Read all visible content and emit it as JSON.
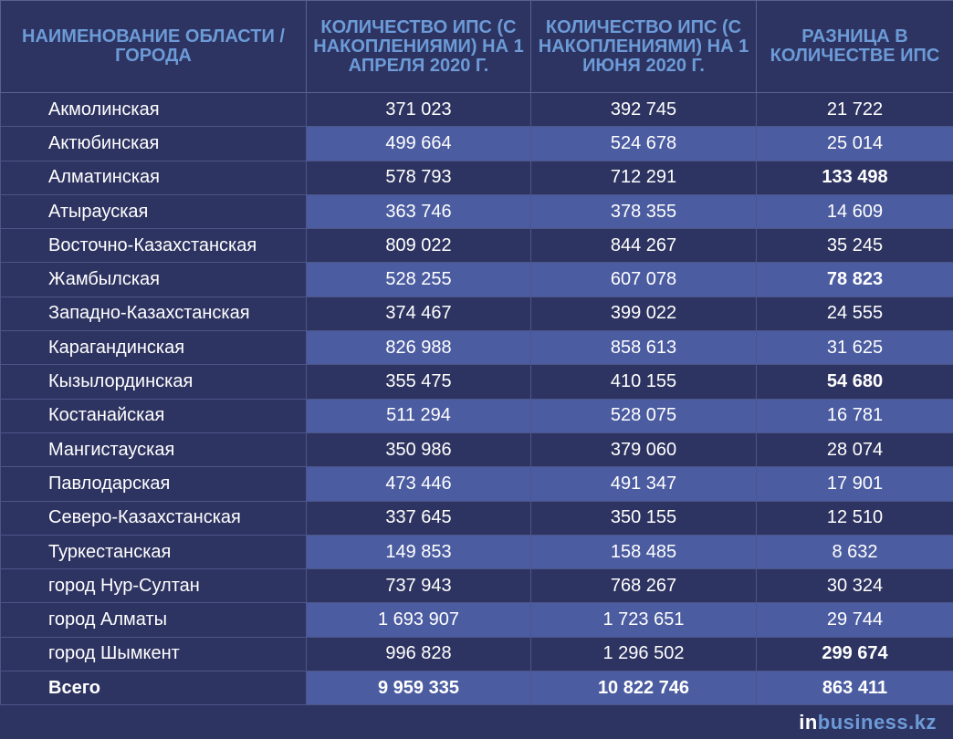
{
  "headers": [
    "НАИМЕНОВАНИЕ ОБЛАСТИ / ГОРОДА",
    "КОЛИЧЕСТВО ИПС (С НАКОПЛЕНИЯМИ) НА 1 АПРЕЛЯ 2020 Г.",
    "КОЛИЧЕСТВО ИПС (С НАКОПЛЕНИЯМИ) НА 1 ИЮНЯ 2020 Г.",
    "РАЗНИЦА В КОЛИЧЕСТВЕ ИПС"
  ],
  "rows": [
    {
      "name": "Акмолинская",
      "apr": "371 023",
      "jun": "392 745",
      "diff": "21 722",
      "bold": false
    },
    {
      "name": "Актюбинская",
      "apr": "499 664",
      "jun": "524 678",
      "diff": "25 014",
      "bold": false
    },
    {
      "name": "Алматинская",
      "apr": "578 793",
      "jun": "712 291",
      "diff": "133 498",
      "bold": true
    },
    {
      "name": "Атырауская",
      "apr": "363 746",
      "jun": "378 355",
      "diff": "14 609",
      "bold": false
    },
    {
      "name": "Восточно-Казахстанская",
      "apr": "809 022",
      "jun": "844 267",
      "diff": "35 245",
      "bold": false
    },
    {
      "name": "Жамбылская",
      "apr": "528 255",
      "jun": "607 078",
      "diff": "78 823",
      "bold": true
    },
    {
      "name": "Западно-Казахстанская",
      "apr": "374 467",
      "jun": "399 022",
      "diff": "24 555",
      "bold": false
    },
    {
      "name": "Карагандинская",
      "apr": "826 988",
      "jun": "858 613",
      "diff": "31 625",
      "bold": false
    },
    {
      "name": "Кызылординская",
      "apr": "355 475",
      "jun": "410 155",
      "diff": "54 680",
      "bold": true
    },
    {
      "name": "Костанайская",
      "apr": "511 294",
      "jun": "528 075",
      "diff": "16 781",
      "bold": false
    },
    {
      "name": "Мангистауская",
      "apr": "350 986",
      "jun": "379 060",
      "diff": "28 074",
      "bold": false
    },
    {
      "name": "Павлодарская",
      "apr": "473 446",
      "jun": "491 347",
      "diff": "17 901",
      "bold": false
    },
    {
      "name": "Северо-Казахстанская",
      "apr": "337 645",
      "jun": "350 155",
      "diff": "12 510",
      "bold": false
    },
    {
      "name": "Туркестанская",
      "apr": "149 853",
      "jun": "158 485",
      "diff": "8 632",
      "bold": false
    },
    {
      "name": "город Нур-Султан",
      "apr": "737 943",
      "jun": "768 267",
      "diff": "30 324",
      "bold": false
    },
    {
      "name": "город Алматы",
      "apr": "1 693 907",
      "jun": "1 723 651",
      "diff": "29 744",
      "bold": false
    },
    {
      "name": "город Шымкент",
      "apr": "996 828",
      "jun": "1 296 502",
      "diff": "299 674",
      "bold": true
    }
  ],
  "total": {
    "name": "Всего",
    "apr": "9 959 335",
    "jun": "10 822 746",
    "diff": "863 411"
  },
  "logo": {
    "prefix": "in",
    "suffix": "business.kz"
  },
  "colors": {
    "background": "#2e3461",
    "highlight": "#4b5ca1",
    "header_text": "#6c9bd8"
  }
}
